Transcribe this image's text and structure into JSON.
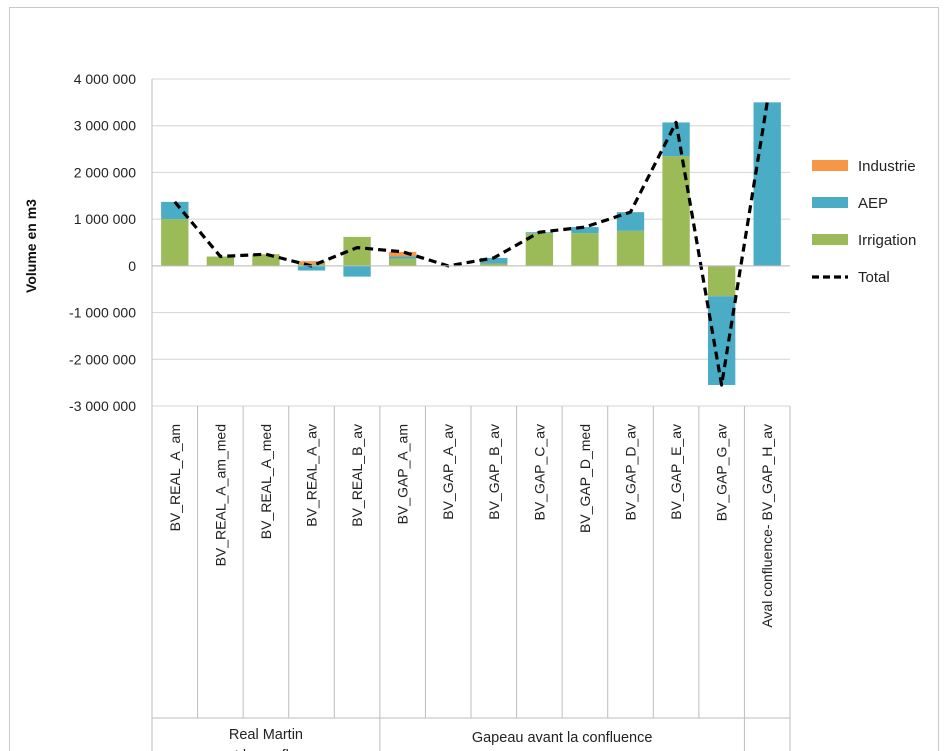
{
  "chart_data": {
    "type": "bar",
    "stacked": true,
    "ylabel": "Volume en m3",
    "ylim": [
      -3000000,
      4000000
    ],
    "yticks": [
      4000000,
      3000000,
      2000000,
      1000000,
      0,
      -1000000,
      -2000000,
      -3000000
    ],
    "ytick_labels": [
      "4 000 000",
      "3 000 000",
      "2 000 000",
      "1 000 000",
      "0",
      "-1 000 000",
      "-2 000 000",
      "-3 000 000"
    ],
    "categories": [
      "BV_REAL_A_am",
      "BV_REAL_A_am_med",
      "BV_REAL_A_med",
      "BV_REAL_A_av",
      "BV_REAL_B_av",
      "BV_GAP_A_am",
      "BV_GAP_A_av",
      "BV_GAP_B_av",
      "BV_GAP_C_av",
      "BV_GAP_D_med",
      "BV_GAP_D_av",
      "BV_GAP_E_av",
      "BV_GAP_G_av",
      "Aval confluence- BV_GAP_H_av"
    ],
    "groups": [
      {
        "label_lines": [
          "Real Martin",
          "avant la confluence"
        ],
        "span": [
          0,
          4
        ]
      },
      {
        "label_lines": [
          "Gapeau avant la confluence"
        ],
        "span": [
          5,
          12
        ]
      },
      {
        "label_lines": [
          ""
        ],
        "span": [
          13,
          13
        ]
      }
    ],
    "series": [
      {
        "name": "Irrigation",
        "color": "#9bbb59",
        "kind": "bar",
        "values": [
          1000000,
          200000,
          250000,
          50000,
          620000,
          150000,
          0,
          50000,
          700000,
          700000,
          750000,
          2350000,
          -650000,
          0
        ]
      },
      {
        "name": "AEP",
        "color": "#4bacc6",
        "kind": "bar",
        "values": [
          370000,
          0,
          0,
          -100000,
          -230000,
          50000,
          0,
          120000,
          20000,
          130000,
          400000,
          720000,
          -1900000,
          3500000
        ]
      },
      {
        "name": "Industrie",
        "color": "#f79646",
        "kind": "bar",
        "values": [
          0,
          0,
          0,
          50000,
          0,
          100000,
          0,
          0,
          0,
          0,
          0,
          0,
          0,
          0
        ]
      },
      {
        "name": "Total",
        "color": "#000000",
        "kind": "line",
        "dashed": true,
        "values": [
          1370000,
          200000,
          250000,
          0,
          390000,
          300000,
          0,
          170000,
          720000,
          830000,
          1150000,
          3070000,
          -2550000,
          3500000
        ]
      }
    ],
    "legend": {
      "position": "right",
      "order": [
        "Industrie",
        "AEP",
        "Irrigation",
        "Total"
      ]
    },
    "grid": true
  }
}
